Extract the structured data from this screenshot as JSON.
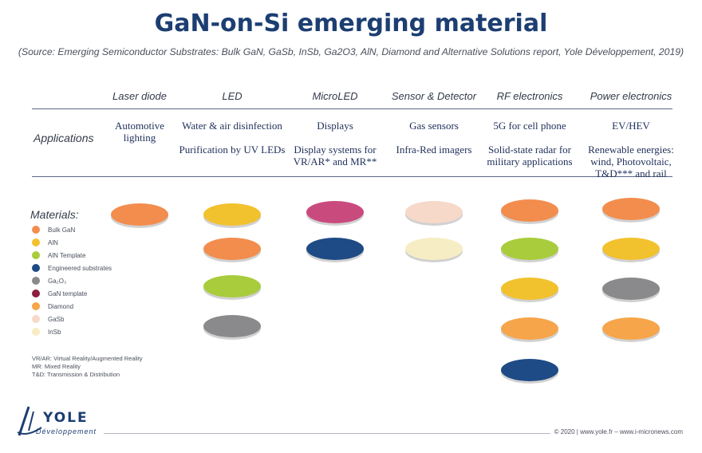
{
  "title": "GaN-on-Si emerging material",
  "subtitle": "(Source: Emerging Semiconductor Substrates: Bulk GaN, GaSb, InSb, Ga2O3, AlN, Diamond and Alternative Solutions report, Yole Développement, 2019)",
  "row_labels": {
    "applications": "Applications",
    "materials": "Materials:"
  },
  "columns": [
    {
      "header": "Laser diode",
      "apps": [
        "Automotive\nlighting"
      ],
      "discs": [
        "#f28d4e"
      ]
    },
    {
      "header": "LED",
      "apps": [
        "Water & air disinfection",
        "Purification by UV LEDs"
      ],
      "discs": [
        "#f2c12e",
        "#f28d4e",
        "#a8cc3c",
        "#8a8a8c"
      ]
    },
    {
      "header": "MicroLED",
      "apps": [
        "Displays",
        "Display systems for\nVR/AR* and MR**"
      ],
      "discs": [
        "#c94b7e",
        "#1e4b86"
      ]
    },
    {
      "header": "Sensor & Detector",
      "apps": [
        "Gas sensors",
        "Infra-Red imagers"
      ],
      "discs": [
        "#f7d9c9",
        "#f7edc4"
      ]
    },
    {
      "header": "RF electronics",
      "apps": [
        "5G for cell phone",
        "Solid-state radar for\nmilitary applications"
      ],
      "discs": [
        "#f28d4e",
        "#a8cc3c",
        "#f2c12e",
        "#f6a54a",
        "#1e4b86"
      ]
    },
    {
      "header": "Power electronics",
      "apps": [
        "EV/HEV",
        "Renewable energies:\nwind, Photovoltaic,\nT&D*** and rail"
      ],
      "discs": [
        "#f28d4e",
        "#f2c12e",
        "#8a8a8c",
        "#f6a54a"
      ]
    }
  ],
  "legend": [
    {
      "label": "Bulk GaN",
      "color": "#f28d4e"
    },
    {
      "label": "AlN",
      "color": "#f2c12e"
    },
    {
      "label": "AlN Template",
      "color": "#a8cc3c"
    },
    {
      "label": "Engineered substrates",
      "color": "#1e4b86"
    },
    {
      "label": "Ga₂O₃",
      "color": "#8a8a8c"
    },
    {
      "label": "GaN template",
      "color": "#8c1e3e"
    },
    {
      "label": "Diamond",
      "color": "#f6a54a"
    },
    {
      "label": "GaSb",
      "color": "#f7d9c9"
    },
    {
      "label": "InSb",
      "color": "#f7edc4"
    }
  ],
  "notes": [
    "VR/AR: Virtual Reality/Augmented Reality",
    "MR: Mixed Reality",
    "T&D: Transmission & Distribution"
  ],
  "logo": {
    "wordmark": "YOLE",
    "sub": "Développement"
  },
  "footer": "© 2020 | www.yole.fr – www.i-micronews.com"
}
